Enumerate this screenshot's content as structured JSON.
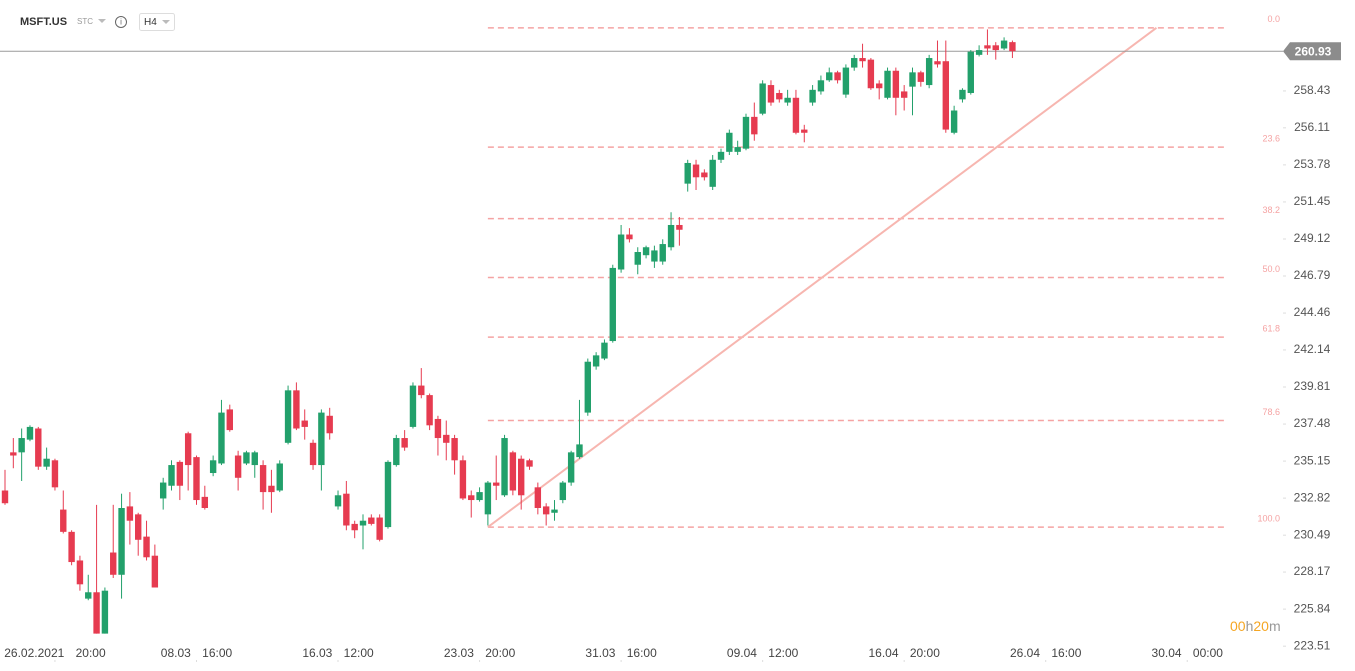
{
  "header": {
    "symbol": "MSFT.US",
    "market": "STC",
    "interval": "H4"
  },
  "timer": [
    "00",
    "h",
    "20",
    "m"
  ],
  "chart_data": {
    "type": "candlestick",
    "up_color": "#22a06b",
    "down_color": "#e63b50",
    "last_price": 260.93,
    "ylim": [
      222.64,
      264.15
    ],
    "yticks": [
      258.43,
      256.11,
      253.78,
      251.45,
      249.12,
      246.79,
      244.46,
      242.14,
      239.81,
      237.48,
      235.15,
      232.82,
      230.49,
      228.17,
      225.84,
      223.51
    ],
    "xlim": [
      -0.6,
      153.5
    ],
    "xticks": [
      {
        "value": 6,
        "label": "26.02.2021 20:00"
      },
      {
        "value": 23,
        "label": "08.03 16:00"
      },
      {
        "value": 40,
        "label": "16.03 12:00"
      },
      {
        "value": 57,
        "label": "23.03 20:00"
      },
      {
        "value": 74,
        "label": "31.03 16:00"
      },
      {
        "value": 91,
        "label": "09.04 12:00"
      },
      {
        "value": 108,
        "label": "16.04 20:00"
      },
      {
        "value": 125,
        "label": "26.04 16:00"
      },
      {
        "value": 142,
        "label": "30.04 00:00"
      }
    ],
    "grid": false,
    "open": [
      233.3,
      235.7,
      235.7,
      236.5,
      237.2,
      234.8,
      235.2,
      232.1,
      230.7,
      228.9,
      226.5,
      226.9,
      224.3,
      229.4,
      228.0,
      232.3,
      231.8,
      230.4,
      229.2,
      232.8,
      233.6,
      235.1,
      236.9,
      235.4,
      232.9,
      234.4,
      235.0,
      238.4,
      235.5,
      235.0,
      234.9,
      234.9,
      233.6,
      233.3,
      236.3,
      239.6,
      237.7,
      236.3,
      234.9,
      238.0,
      232.3,
      233.1,
      231.2,
      231.1,
      231.6,
      231.6,
      231.0,
      234.9,
      236.6,
      237.3,
      239.9,
      239.3,
      237.8,
      236.8,
      236.6,
      235.2,
      233.0,
      232.7,
      231.8,
      233.8,
      233.0,
      235.7,
      235.3,
      235.2,
      233.5,
      232.3,
      231.9,
      232.7,
      233.8,
      235.4,
      238.2,
      241.1,
      241.6,
      242.7,
      247.2,
      249.4,
      247.5,
      248.1,
      247.7,
      247.7,
      248.6,
      250.0,
      252.6,
      253.8,
      253.3,
      252.4,
      254.1,
      254.6,
      254.6,
      254.8,
      256.8,
      257.0,
      258.8,
      258.3,
      257.7,
      258.0,
      256.0,
      257.7,
      258.4,
      259.1,
      259.6,
      258.2,
      259.9,
      260.5,
      260.4,
      258.9,
      258.0,
      259.7,
      258.4,
      258.7,
      259.6,
      258.8,
      260.3,
      260.3,
      255.8,
      257.9,
      258.3,
      260.7,
      261.3,
      261.3,
      261.1,
      261.5
    ],
    "high": [
      234.6,
      236.6,
      237.2,
      237.4,
      237.3,
      236.0,
      235.3,
      233.3,
      230.8,
      229.2,
      228.0,
      232.4,
      227.2,
      232.4,
      233.1,
      233.2,
      231.9,
      231.4,
      229.9,
      234.1,
      235.2,
      235.2,
      237.0,
      235.5,
      233.6,
      235.5,
      239.0,
      238.7,
      235.8,
      235.8,
      235.8,
      235.2,
      234.6,
      235.2,
      239.9,
      240.1,
      238.4,
      236.5,
      238.4,
      238.5,
      233.3,
      233.9,
      231.4,
      231.8,
      231.8,
      231.8,
      235.2,
      236.8,
      237.1,
      240.1,
      241.0,
      239.4,
      238.0,
      237.7,
      236.8,
      235.5,
      233.3,
      233.5,
      233.9,
      235.5,
      236.8,
      235.8,
      235.5,
      235.3,
      233.8,
      232.5,
      232.7,
      233.9,
      235.8,
      239.0,
      241.6,
      242.0,
      242.8,
      247.5,
      250.0,
      249.8,
      248.6,
      248.7,
      248.7,
      249.1,
      250.8,
      250.5,
      254.1,
      254.1,
      253.5,
      254.4,
      254.8,
      256.0,
      255.3,
      257.0,
      257.7,
      259.1,
      259.1,
      258.5,
      258.5,
      258.5,
      256.3,
      258.8,
      259.4,
      259.9,
      259.7,
      260.1,
      260.7,
      261.4,
      260.5,
      259.1,
      259.9,
      259.9,
      258.8,
      259.9,
      259.7,
      260.7,
      261.6,
      261.6,
      257.5,
      258.6,
      261.0,
      261.3,
      262.3,
      261.5,
      261.8,
      261.6
    ],
    "low": [
      232.4,
      234.7,
      233.9,
      236.4,
      234.6,
      234.6,
      233.3,
      230.6,
      228.6,
      227.0,
      226.4,
      224.3,
      224.3,
      227.8,
      226.5,
      229.9,
      229.2,
      228.9,
      227.2,
      232.1,
      233.3,
      232.7,
      233.3,
      232.4,
      232.1,
      234.2,
      234.9,
      237.0,
      233.3,
      234.9,
      234.1,
      232.1,
      231.9,
      233.2,
      236.2,
      237.1,
      236.5,
      234.6,
      233.3,
      236.5,
      232.1,
      230.8,
      230.3,
      229.6,
      231.1,
      230.1,
      230.9,
      234.8,
      235.8,
      237.2,
      239.1,
      237.1,
      235.5,
      235.2,
      234.3,
      232.7,
      231.6,
      232.6,
      231.1,
      232.7,
      232.9,
      233.0,
      232.1,
      234.6,
      231.8,
      231.1,
      231.4,
      232.5,
      233.6,
      235.3,
      238.0,
      240.9,
      241.5,
      242.6,
      247.0,
      248.9,
      246.9,
      247.9,
      247.3,
      247.5,
      248.4,
      248.7,
      252.1,
      252.2,
      252.8,
      252.2,
      253.9,
      254.4,
      254.4,
      254.7,
      255.3,
      256.9,
      257.5,
      257.7,
      257.5,
      255.7,
      255.2,
      257.5,
      258.2,
      259.0,
      258.9,
      258.0,
      259.7,
      259.9,
      258.5,
      257.9,
      257.9,
      256.9,
      257.2,
      256.9,
      258.7,
      258.6,
      259.9,
      255.8,
      255.7,
      257.7,
      258.2,
      260.6,
      260.7,
      260.4,
      261.0,
      260.5
    ],
    "close": [
      232.5,
      235.5,
      236.6,
      237.3,
      234.8,
      235.3,
      233.5,
      230.7,
      228.8,
      227.4,
      226.9,
      224.3,
      227.0,
      228.0,
      232.2,
      231.4,
      230.2,
      229.1,
      227.2,
      233.8,
      234.9,
      233.6,
      234.9,
      232.7,
      232.2,
      235.2,
      238.2,
      237.1,
      234.1,
      235.7,
      235.7,
      233.2,
      233.2,
      235.0,
      239.6,
      237.2,
      237.3,
      234.9,
      238.2,
      236.9,
      233.0,
      231.1,
      230.8,
      231.4,
      231.2,
      230.2,
      235.1,
      236.6,
      236.0,
      239.9,
      239.3,
      237.4,
      236.6,
      236.3,
      235.2,
      232.8,
      232.7,
      233.2,
      233.8,
      233.6,
      236.6,
      233.3,
      233.0,
      234.8,
      232.2,
      231.8,
      232.1,
      233.8,
      235.7,
      236.2,
      241.4,
      241.8,
      242.6,
      247.3,
      249.4,
      249.1,
      248.3,
      248.6,
      248.4,
      248.8,
      250.0,
      249.7,
      253.9,
      253.0,
      253.0,
      254.1,
      254.6,
      255.8,
      254.9,
      256.8,
      255.7,
      258.9,
      257.7,
      257.9,
      258.0,
      255.8,
      255.8,
      258.5,
      259.1,
      259.6,
      259.1,
      259.9,
      260.5,
      260.3,
      258.6,
      258.6,
      259.7,
      258.0,
      258.0,
      259.6,
      259.0,
      260.5,
      260.1,
      256.0,
      257.2,
      258.5,
      260.9,
      261.0,
      261.1,
      261.0,
      261.6,
      260.93
    ],
    "trendline": {
      "color": "#f7b6b0",
      "start": [
        58,
        231.0
      ],
      "end": [
        138.3,
        262.4
      ]
    },
    "fib_color": "#f5a3a3",
    "fib_levels": [
      {
        "label": "0.0",
        "price": 262.4
      },
      {
        "label": "23.6",
        "price": 254.9
      },
      {
        "label": "38.2",
        "price": 250.4
      },
      {
        "label": "50.0",
        "price": 246.7
      },
      {
        "label": "61.8",
        "price": 242.95
      },
      {
        "label": "78.6",
        "price": 237.7
      },
      {
        "label": "100.0",
        "price": 231.0
      }
    ]
  }
}
